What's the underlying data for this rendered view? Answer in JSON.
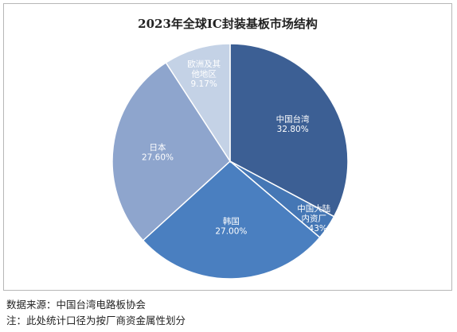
{
  "chart_data": {
    "type": "pie",
    "title": "2023年全球IC封装基板市场结构",
    "slices": [
      {
        "label": [
          "中国台湾"
        ],
        "value_label": "32.80%",
        "value": 32.8,
        "color": "#3c5f94",
        "text_color": "#ffffff"
      },
      {
        "label": [
          "中国大陆",
          "内资厂"
        ],
        "value_label": "3.43%",
        "value": 3.43,
        "color": "#4577b5",
        "text_color": "#ffffff"
      },
      {
        "label": [
          "韩国"
        ],
        "value_label": "27.00%",
        "value": 27.0,
        "color": "#4a7fc0",
        "text_color": "#ffffff"
      },
      {
        "label": [
          "日本"
        ],
        "value_label": "27.60%",
        "value": 27.6,
        "color": "#8ea5cd",
        "text_color": "#ffffff"
      },
      {
        "label": [
          "欧洲及其",
          "他地区"
        ],
        "value_label": "9.17%",
        "value": 9.17,
        "color": "#c4d2e6",
        "text_color": "#ffffff"
      }
    ]
  },
  "footer": {
    "source": "数据来源：中国台湾电路板协会",
    "note": "注：此处统计口径为按厂商资金属性划分"
  }
}
